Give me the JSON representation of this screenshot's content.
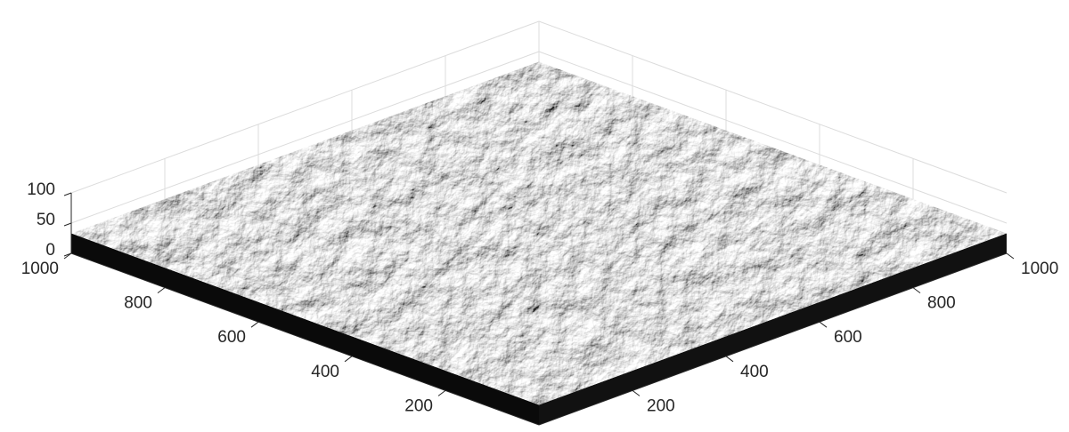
{
  "chart_data": {
    "type": "surface",
    "xlim": [
      0,
      1000
    ],
    "ylim": [
      0,
      1000
    ],
    "zlim": [
      0,
      100
    ],
    "xticks": [
      200,
      400,
      600,
      800,
      1000
    ],
    "yticks": [
      200,
      400,
      600,
      800,
      1000
    ],
    "zticks": [
      0,
      50,
      100
    ],
    "grid": true
  }
}
